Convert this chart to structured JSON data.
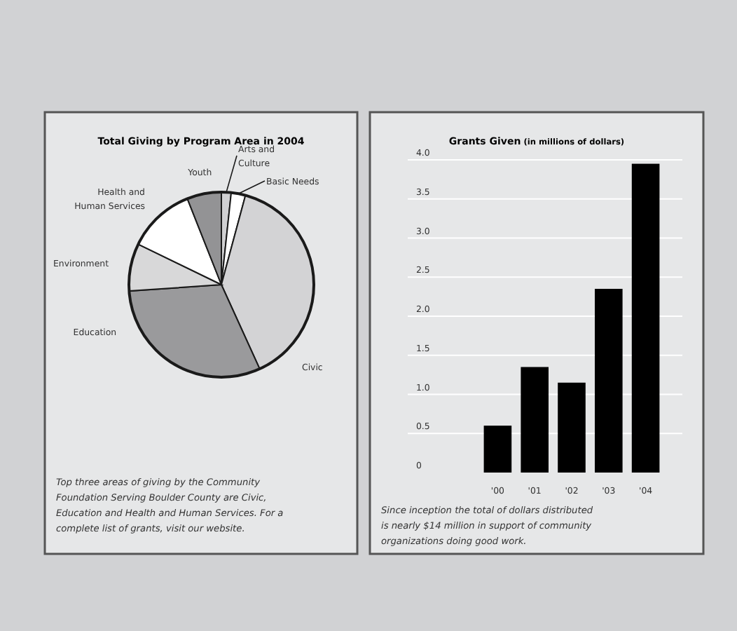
{
  "chart_data": [
    {
      "type": "pie",
      "title": "Total Giving by Program Area in 2004",
      "categories": [
        "Arts and Culture",
        "Basic Needs",
        "Civic",
        "Education",
        "Environment",
        "Health and Human Services",
        "Youth"
      ],
      "values": [
        1.7,
        2.5,
        39,
        30.7,
        8.3,
        11.8,
        6
      ],
      "colors": [
        "#d0d0d2",
        "#ffffff",
        "#d3d3d5",
        "#9a9a9c",
        "#d8d8d9",
        "#ffffff",
        "#939395"
      ],
      "annotations": [
        "Top three areas of giving by the Community Foundation Serving Boulder County are Civic, Education and Health and Human Services. For a complete list of grants, visit our website."
      ]
    },
    {
      "type": "bar",
      "title": "Grants Given",
      "subtitle": "(in millions of dollars)",
      "categories": [
        "'00",
        "'01",
        "'02",
        "'03",
        "'04"
      ],
      "values": [
        0.6,
        1.35,
        1.15,
        2.35,
        3.95
      ],
      "color": "#000000",
      "ylim": [
        0,
        4
      ],
      "yticks": [
        {
          "value": 0,
          "label": "0"
        },
        {
          "value": 0.5,
          "label": "0.5"
        },
        {
          "value": 1,
          "label": "1.0"
        },
        {
          "value": 1.5,
          "label": "1.5"
        },
        {
          "value": 2,
          "label": "2.0"
        },
        {
          "value": 2.5,
          "label": "2.5"
        },
        {
          "value": 3,
          "label": "3.0"
        },
        {
          "value": 3.5,
          "label": "3.5"
        },
        {
          "value": 4,
          "label": "4.0"
        }
      ],
      "grid": "y",
      "annotations": [
        "Since inception the total of dollars distributed is nearly $14 million in support of community organizations doing good work."
      ]
    }
  ]
}
